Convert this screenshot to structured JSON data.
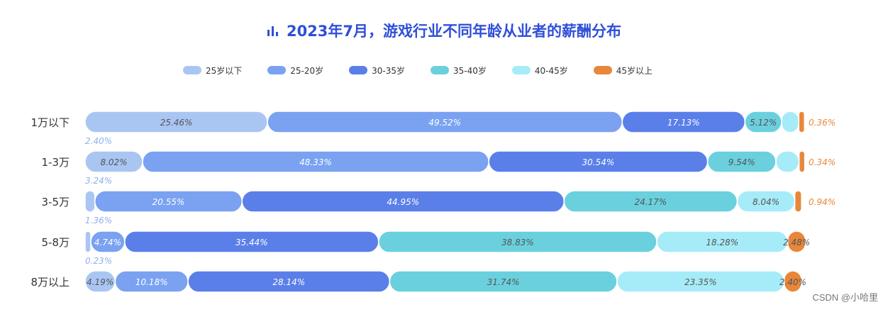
{
  "title": "2023年7月，游戏行业不同年龄从业者的薪酬分布",
  "watermark": "CSDN @小哈里",
  "colors": [
    "#a9c6f3",
    "#7aa2f1",
    "#5b7fe9",
    "#6ad0de",
    "#a6ecf8",
    "#e8873a"
  ],
  "chart_data": {
    "type": "bar",
    "orientation": "horizontal",
    "stacked": true,
    "percent": true,
    "title": "2023年7月，游戏行业不同年龄从业者的薪酬分布",
    "legend_position": "top",
    "categories": [
      "1万以下",
      "1-3万",
      "3-5万",
      "5-8万",
      "8万以上"
    ],
    "series": [
      {
        "name": "25岁以下",
        "values": [
          25.46,
          8.02,
          1.36,
          0.23,
          4.19
        ],
        "labels": [
          "25.46%",
          "8.02%",
          "1.36%",
          "0.23%",
          "4.19%"
        ]
      },
      {
        "name": "25-20岁",
        "values": [
          49.52,
          48.33,
          20.55,
          4.74,
          10.18
        ],
        "labels": [
          "49.52%",
          "48.33%",
          "20.55%",
          "4.74%",
          "10.18%"
        ]
      },
      {
        "name": "30-35岁",
        "values": [
          17.13,
          30.54,
          44.95,
          35.44,
          28.14
        ],
        "labels": [
          "17.13%",
          "30.54%",
          "44.95%",
          "35.44%",
          "28.14%"
        ]
      },
      {
        "name": "35-40岁",
        "values": [
          5.12,
          9.54,
          24.17,
          38.83,
          31.74
        ],
        "labels": [
          "5.12%",
          "9.54%",
          "24.17%",
          "38.83%",
          "31.74%"
        ]
      },
      {
        "name": "40-45岁",
        "values": [
          2.4,
          3.24,
          8.04,
          18.28,
          23.35
        ],
        "labels": [
          "2.40%",
          "3.24%",
          "8.04%",
          "18.28%",
          "23.35%"
        ]
      },
      {
        "name": "45岁以上",
        "values": [
          0.36,
          0.34,
          0.94,
          2.48,
          2.4
        ],
        "labels": [
          "0.36%",
          "0.34%",
          "0.94%",
          "2.48%",
          "2.40%"
        ]
      }
    ]
  }
}
